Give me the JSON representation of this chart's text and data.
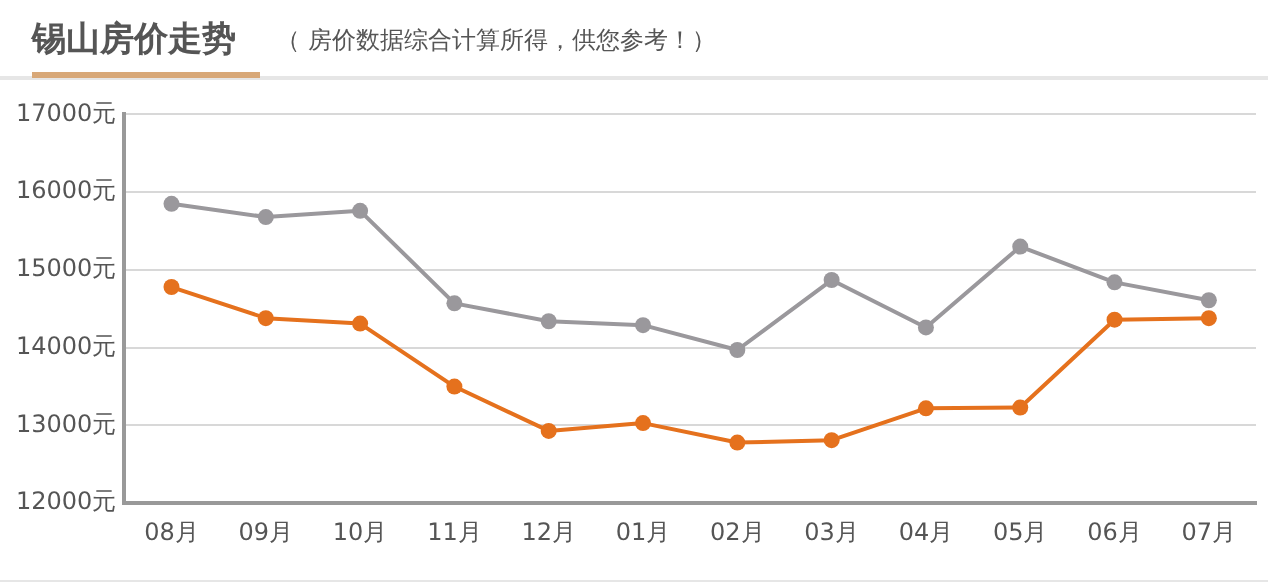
{
  "chart_data": {
    "type": "line",
    "title": "锡山房价走势",
    "subtitle": "（ 房价数据综合计算所得，供您参考！）",
    "categories": [
      "08月",
      "09月",
      "10月",
      "11月",
      "12月",
      "01月",
      "02月",
      "03月",
      "04月",
      "05月",
      "06月",
      "07月"
    ],
    "series": [
      {
        "color": "#9a989c",
        "values": [
          15850,
          15680,
          15760,
          14570,
          14340,
          14290,
          13970,
          14870,
          14260,
          15300,
          14840,
          14610
        ]
      },
      {
        "color": "#e5711d",
        "values": [
          14780,
          14380,
          14310,
          13500,
          12930,
          13030,
          12780,
          12810,
          13220,
          13230,
          14360,
          14380
        ]
      }
    ],
    "ylim": [
      12000,
      17000
    ],
    "yticks": [
      {
        "value": 12000,
        "label": "12000元"
      },
      {
        "value": 13000,
        "label": "13000元"
      },
      {
        "value": 14000,
        "label": "14000元"
      },
      {
        "value": 15000,
        "label": "15000元"
      },
      {
        "value": 16000,
        "label": "16000元"
      },
      {
        "value": 17000,
        "label": "17000元"
      }
    ],
    "grid": "y",
    "legend": false,
    "marker": "circle",
    "line_style": "solid"
  }
}
